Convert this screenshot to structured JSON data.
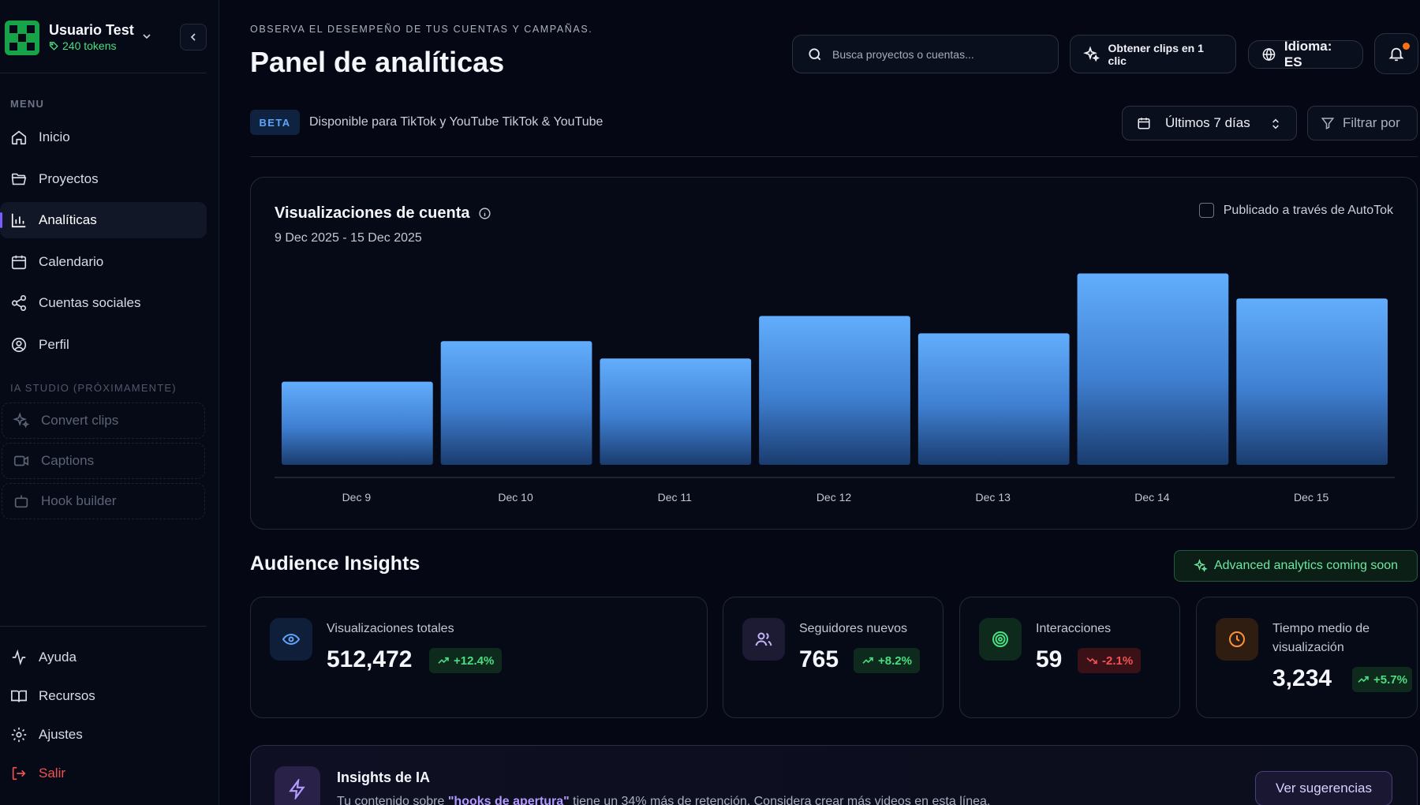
{
  "user": {
    "name": "Usuario Test",
    "tokens": "240 tokens"
  },
  "sidebar": {
    "menu_label": "MENU",
    "items": [
      {
        "label": "Inicio",
        "icon": "home-icon"
      },
      {
        "label": "Proyectos",
        "icon": "folder-icon"
      },
      {
        "label": "Analíticas",
        "icon": "bar-chart-icon",
        "active": true
      },
      {
        "label": "Calendario",
        "icon": "calendar-icon"
      },
      {
        "label": "Cuentas sociales",
        "icon": "share-icon"
      },
      {
        "label": "Perfil",
        "icon": "user-circle-icon"
      }
    ],
    "studio_label": "IA STUDIO (PRÓXIMAMENTE)",
    "studio_items": [
      {
        "label": "Convert clips",
        "icon": "sparkles-icon"
      },
      {
        "label": "Captions",
        "icon": "video-icon"
      },
      {
        "label": "Hook builder",
        "icon": "bot-icon"
      }
    ],
    "bottom_items": [
      {
        "label": "Ayuda",
        "icon": "activity-icon"
      },
      {
        "label": "Recursos",
        "icon": "book-icon"
      },
      {
        "label": "Ajustes",
        "icon": "gear-icon"
      },
      {
        "label": "Salir",
        "icon": "logout-icon"
      }
    ]
  },
  "header": {
    "eyebrow": "OBSERVA EL DESEMPEÑO DE TUS CUENTAS Y CAMPAÑAS.",
    "title": "Panel de analíticas",
    "search_placeholder": "Busca proyectos o cuentas...",
    "clips_button": "Obtener clips en 1 clic",
    "language_button": "Idioma: ES"
  },
  "subheader": {
    "beta": "BETA",
    "availability": "Disponible para TikTok y YouTube TikTok & YouTube",
    "date_range": "Últimos 7 días",
    "filter": "Filtrar por"
  },
  "chart_card": {
    "title": "Visualizaciones de cuenta",
    "range": "9 Dec 2025 - 15 Dec 2025",
    "checkbox_label": "Publicado a través de AutoTok"
  },
  "chart_data": {
    "type": "bar",
    "categories": [
      "Dec 9",
      "Dec 10",
      "Dec 11",
      "Dec 12",
      "Dec 13",
      "Dec 14",
      "Dec 15"
    ],
    "values": [
      43,
      64,
      55,
      77,
      68,
      99,
      86
    ],
    "ylim": [
      0,
      100
    ],
    "grid": false,
    "bar_color": "#60a5fa"
  },
  "insights": {
    "title": "Audience Insights",
    "badge": "Advanced analytics coming soon",
    "cards": [
      {
        "label": "Visualizaciones totales",
        "value": "512,472",
        "delta": "+12.4%",
        "trend": "up",
        "icon": "eye-icon"
      },
      {
        "label": "Seguidores nuevos",
        "value": "765",
        "delta": "+8.2%",
        "trend": "up",
        "icon": "users-icon"
      },
      {
        "label": "Interacciones",
        "value": "59",
        "delta": "-2.1%",
        "trend": "down",
        "icon": "target-icon"
      },
      {
        "label": "Tiempo medio de visualización",
        "value": "3,234",
        "delta": "+5.7%",
        "trend": "up",
        "icon": "clock-icon"
      }
    ]
  },
  "ai_insights": {
    "title": "Insights de IA",
    "text_before": "Tu contenido sobre ",
    "text_highlight": "\"hooks de apertura\"",
    "text_after": " tiene un 34% más de retención. Considera crear más videos en esta línea.",
    "button": "Ver sugerencias"
  },
  "colors": {
    "accent": "#7c5cff",
    "positive": "#4ade80",
    "negative": "#f05252",
    "chart_bar": "#60a5fa"
  }
}
